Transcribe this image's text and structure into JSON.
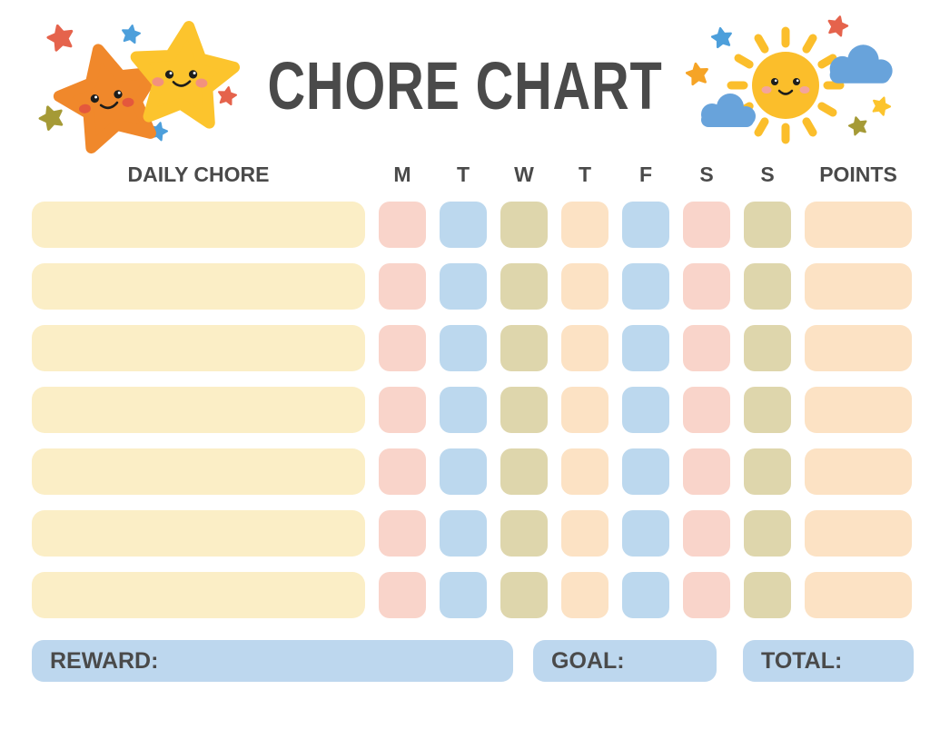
{
  "title": "CHORE CHART",
  "colors": {
    "heading_text": "#4a4a4a",
    "chore_bar": "#fbeec6",
    "pink": "#f9d4ca",
    "blue": "#bcd8ee",
    "olive": "#ded6ac",
    "peach": "#fce2c4",
    "footer_box": "#bdd7ee",
    "star_orange": "#f0882b",
    "star_yellow": "#fcc42d",
    "sun": "#fbbe2b",
    "cloud": "#68a3db",
    "mini_star_red": "#e5634c",
    "mini_star_blue": "#4d9fdb",
    "mini_star_olive": "#a59a36",
    "mini_star_orange": "#f6a426",
    "face": "#1d1d1b",
    "cheek_orange": "#e4583c",
    "cheek_pink": "#f2917e",
    "cheek_sun": "#f4a49c",
    "eye_glint": "#ffffff"
  },
  "table": {
    "chore_header": "DAILY CHORE",
    "day_headers": [
      "M",
      "T",
      "W",
      "T",
      "F",
      "S",
      "S"
    ],
    "day_names": [
      "mon",
      "tue",
      "wed",
      "thu",
      "fri",
      "sat",
      "sun"
    ],
    "points_header": "POINTS",
    "rows": 7,
    "chore_cell_color": "chore_bar",
    "day_cell_colors": [
      "pink",
      "blue",
      "olive",
      "peach",
      "blue",
      "pink",
      "olive"
    ],
    "points_cell_color": "peach"
  },
  "footer": {
    "reward_label": "REWARD:",
    "goal_label": "GOAL:",
    "total_label": "TOTAL:"
  }
}
